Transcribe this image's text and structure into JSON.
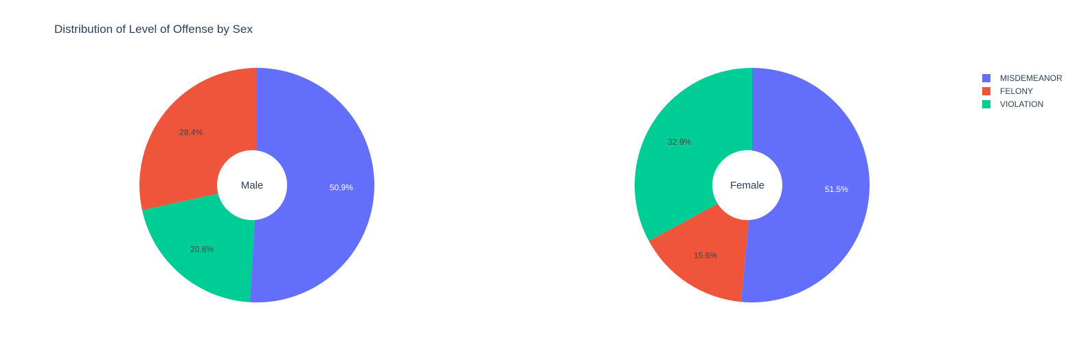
{
  "chart_data": {
    "type": "pie",
    "title": "Distribution of Level of Offense by Sex",
    "legend": {
      "placement": "top-right",
      "entries": [
        {
          "label": "MISDEMEANOR",
          "color": "#636efa"
        },
        {
          "label": "FELONY",
          "color": "#ef553b"
        },
        {
          "label": "VIOLATION",
          "color": "#00cc96"
        }
      ]
    },
    "charts": [
      {
        "name": "Male",
        "hole": true,
        "slices": [
          {
            "label": "MISDEMEANOR",
            "value": 50.9,
            "text": "50.9%",
            "color": "#636efa"
          },
          {
            "label": "VIOLATION",
            "value": 20.6,
            "text": "20.6%",
            "color": "#00cc96"
          },
          {
            "label": "FELONY",
            "value": 28.4,
            "text": "28.4%",
            "color": "#ef553b"
          }
        ]
      },
      {
        "name": "Female",
        "hole": true,
        "slices": [
          {
            "label": "MISDEMEANOR",
            "value": 51.5,
            "text": "51.5%",
            "color": "#636efa"
          },
          {
            "label": "FELONY",
            "value": 15.6,
            "text": "15.6%",
            "color": "#ef553b"
          },
          {
            "label": "VIOLATION",
            "value": 32.9,
            "text": "32.9%",
            "color": "#00cc96"
          }
        ]
      }
    ]
  }
}
